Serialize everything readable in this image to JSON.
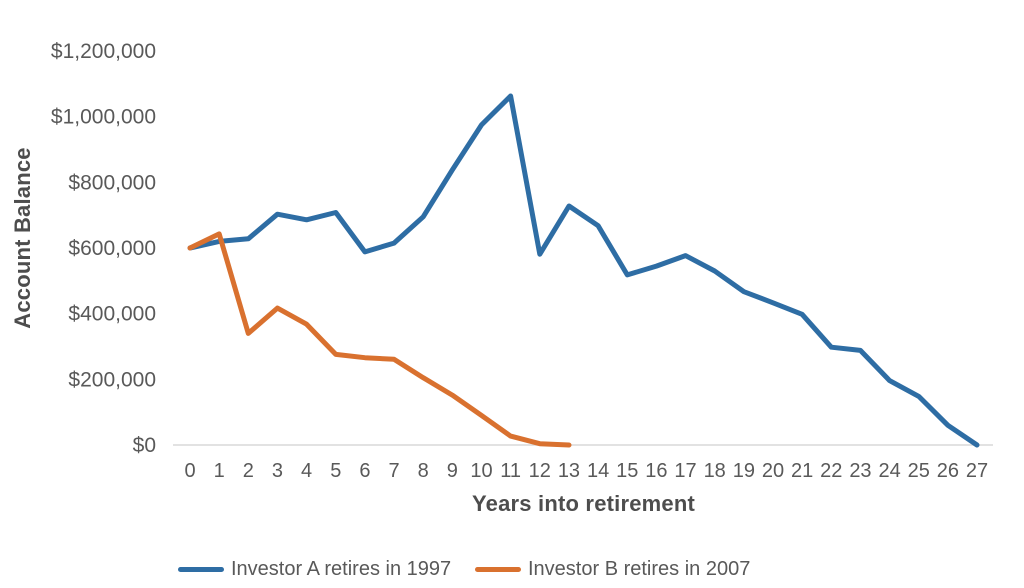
{
  "chart_data": {
    "type": "line",
    "title": "",
    "xlabel": "Years into retirement",
    "ylabel": "Account Balance",
    "x": [
      0,
      1,
      2,
      3,
      4,
      5,
      6,
      7,
      8,
      9,
      10,
      11,
      12,
      13,
      14,
      15,
      16,
      17,
      18,
      19,
      20,
      21,
      22,
      23,
      24,
      25,
      26,
      27
    ],
    "series": [
      {
        "name": "Investor A retires in 1997",
        "color": "#2E6DA4",
        "values": [
          600000,
          620000,
          628000,
          703000,
          686000,
          708000,
          588000,
          615000,
          695000,
          838000,
          975000,
          1063000,
          581000,
          728000,
          668000,
          518000,
          545000,
          577000,
          530000,
          467000,
          433000,
          398000,
          298000,
          288000,
          196000,
          148000,
          60000,
          0
        ]
      },
      {
        "name": "Investor B retires in 2007",
        "color": "#D9712F",
        "values": [
          600000,
          643000,
          340000,
          417000,
          368000,
          276000,
          266000,
          261000,
          205000,
          152000,
          90000,
          27000,
          4000,
          0
        ]
      }
    ],
    "ylim": [
      0,
      1200000
    ],
    "y_tick_step": 200000,
    "y_tick_labels": [
      "$0",
      "$200,000",
      "$400,000",
      "$600,000",
      "$800,000",
      "$1,000,000",
      "$1,200,000"
    ],
    "x_tick_labels": [
      "0",
      "1",
      "2",
      "3",
      "4",
      "5",
      "6",
      "7",
      "8",
      "9",
      "10",
      "11",
      "12",
      "13",
      "14",
      "15",
      "16",
      "17",
      "18",
      "19",
      "20",
      "21",
      "22",
      "23",
      "24",
      "25",
      "26",
      "27"
    ],
    "grid": "off",
    "legend_position": "bottom",
    "axis_line_color": "#D9D9D9",
    "tick_label_color": "#595959",
    "axis_title_color": "#4D4D4D"
  }
}
